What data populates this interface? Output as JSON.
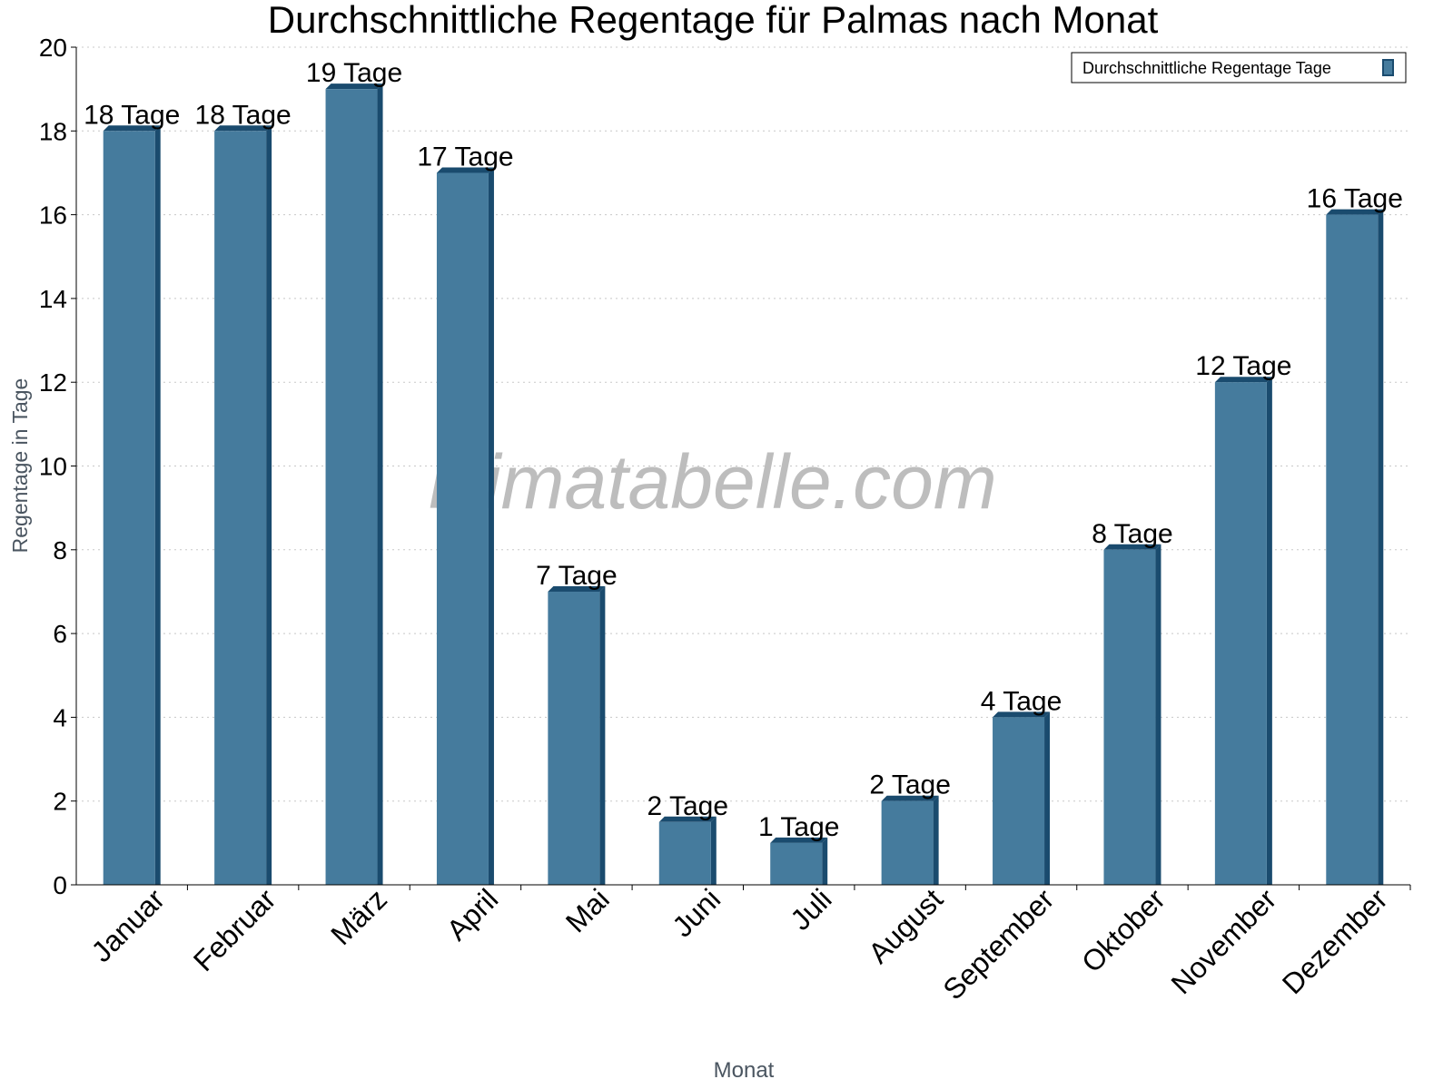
{
  "chart_data": {
    "type": "bar",
    "title": "Durchschnittliche Regentage für Palmas nach Monat",
    "xlabel": "Monat",
    "ylabel": "Regentage in Tage",
    "ylim": [
      0,
      20
    ],
    "yticks": [
      "0",
      "2",
      "4",
      "6",
      "8",
      "10",
      "12",
      "14",
      "16",
      "18",
      "20"
    ],
    "grid": true,
    "legend_position": "top-right",
    "categories": [
      "Januar",
      "Februar",
      "März",
      "April",
      "Mai",
      "Juni",
      "Juli",
      "August",
      "September",
      "Oktober",
      "November",
      "Dezember"
    ],
    "series": [
      {
        "name": "Durchschnittliche Regentage Tage",
        "values": [
          18,
          18,
          19,
          17,
          7,
          1.5,
          1,
          2,
          4,
          8,
          12,
          16
        ],
        "data_labels": [
          "18 Tage",
          "18 Tage",
          "19 Tage",
          "17 Tage",
          "7 Tage",
          "2 Tage",
          "1 Tage",
          "2 Tage",
          "4 Tage",
          "8 Tage",
          "12 Tage",
          "16 Tage"
        ]
      }
    ],
    "colors": {
      "bar": "#457b9d",
      "bar_shade": "#1a4b6e"
    },
    "watermark": "klimatabelle.com"
  }
}
